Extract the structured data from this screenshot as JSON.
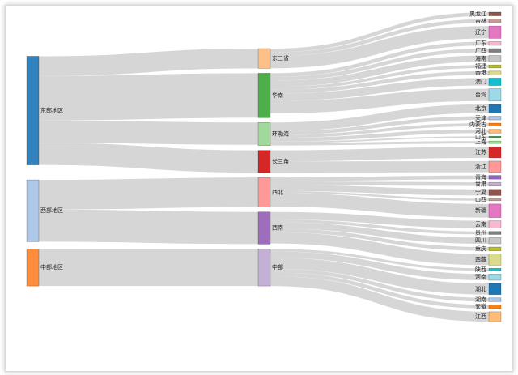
{
  "chart_data": {
    "type": "sankey",
    "title": "",
    "colors": {
      "link": "#cfcfcf",
      "东部地区": "#3182bd",
      "西部地区": "#aec7e8",
      "中部地区": "#fd8d3c",
      "东三省": "#fdc086",
      "华南": "#4daf4a",
      "环渤海": "#a1d99b",
      "长三角": "#d62728",
      "西北": "#ff9896",
      "西南": "#9e6ebd",
      "中部": "#c5b0d5",
      "黑龙江": "#8c564b",
      "吉林": "#c49c94",
      "辽宁": "#e377c2",
      "广东": "#f7b6d2",
      "广西": "#7f7f7f",
      "海南": "#c7c7c7",
      "福建": "#bcbd22",
      "香港": "#dbdb8d",
      "澳门": "#17becf",
      "台湾": "#9edae5",
      "北京": "#1f77b4",
      "天津": "#aec7e8",
      "内蒙古": "#ff7f0e",
      "河北": "#ffbb78",
      "山东": "#2ca02c",
      "上海": "#98df8a",
      "江苏": "#d62728",
      "浙江": "#ff9896",
      "青海": "#9467bd",
      "甘肃": "#c5b0d5",
      "宁夏": "#8c564b",
      "山西": "#c49c94",
      "新疆": "#e377c2",
      "云南": "#f7b6d2",
      "贵州": "#7f7f7f",
      "四川": "#c7c7c7",
      "重庆": "#bcbd22",
      "西藏": "#dbdb8d",
      "陕西": "#17becf",
      "河南": "#9edae5",
      "湖北": "#1f77b4",
      "湖南": "#aec7e8",
      "安徽": "#ff7f0e",
      "江西": "#ffbb78"
    },
    "columns": [
      [
        "东部地区",
        "西部地区",
        "中部地区"
      ],
      [
        "东三省",
        "华南",
        "环渤海",
        "长三角",
        "西北",
        "西南",
        "中部"
      ],
      [
        "黑龙江",
        "吉林",
        "辽宁",
        "广东",
        "广西",
        "海南",
        "福建",
        "香港",
        "澳门",
        "台湾",
        "北京",
        "天津",
        "内蒙古",
        "河北",
        "山东",
        "上海",
        "江苏",
        "浙江",
        "青海",
        "甘肃",
        "宁夏",
        "山西",
        "新疆",
        "云南",
        "贵州",
        "四川",
        "重庆",
        "西藏",
        "陕西",
        "河南",
        "湖北",
        "湖南",
        "安徽",
        "江西"
      ]
    ],
    "links": [
      [
        "东部地区",
        "东三省",
        8
      ],
      [
        "东部地区",
        "华南",
        18
      ],
      [
        "东部地区",
        "环渤海",
        9
      ],
      [
        "东部地区",
        "长三角",
        9
      ],
      [
        "西部地区",
        "西北",
        12
      ],
      [
        "西部地区",
        "西南",
        13
      ],
      [
        "中部地区",
        "中部",
        15
      ],
      [
        "东三省",
        "黑龙江",
        1.5
      ],
      [
        "东三省",
        "吉林",
        1.5
      ],
      [
        "东三省",
        "辽宁",
        5
      ],
      [
        "华南",
        "广东",
        1.5
      ],
      [
        "华南",
        "广西",
        1.5
      ],
      [
        "华南",
        "海南",
        2.5
      ],
      [
        "华南",
        "福建",
        1.2
      ],
      [
        "华南",
        "香港",
        1.5
      ],
      [
        "华南",
        "澳门",
        3
      ],
      [
        "华南",
        "台湾",
        5
      ],
      [
        "环渤海",
        "北京",
        3.5
      ],
      [
        "环渤海",
        "天津",
        1.5
      ],
      [
        "环渤海",
        "内蒙古",
        1.2
      ],
      [
        "环渤海",
        "河北",
        1.5
      ],
      [
        "环渤海",
        "山东",
        0.6
      ],
      [
        "环渤海",
        "上海",
        1
      ],
      [
        "长三角",
        "江苏",
        4.5
      ],
      [
        "长三角",
        "浙江",
        4.5
      ],
      [
        "西北",
        "青海",
        1.5
      ],
      [
        "西北",
        "甘肃",
        1.5
      ],
      [
        "西北",
        "宁夏",
        2.5
      ],
      [
        "西北",
        "山西",
        0.8
      ],
      [
        "西北",
        "新疆",
        5.5
      ],
      [
        "西南",
        "云南",
        3
      ],
      [
        "西南",
        "贵州",
        1.2
      ],
      [
        "西南",
        "四川",
        2.5
      ],
      [
        "西南",
        "重庆",
        1.5
      ],
      [
        "西南",
        "西藏",
        4.5
      ],
      [
        "中部",
        "陕西",
        1
      ],
      [
        "中部",
        "河南",
        2.5
      ],
      [
        "中部",
        "湖北",
        4.5
      ],
      [
        "中部",
        "湖南",
        1.5
      ],
      [
        "中部",
        "安徽",
        1.5
      ],
      [
        "中部",
        "江西",
        4
      ]
    ]
  }
}
